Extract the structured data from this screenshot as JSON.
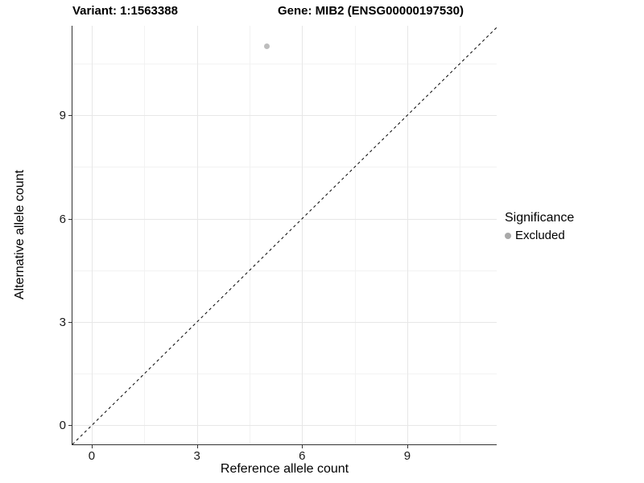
{
  "chart_data": {
    "type": "scatter",
    "title_left": "Variant: 1:1563388",
    "title_right": "Gene: MIB2 (ENSG00000197530)",
    "xlabel": "Reference allele count",
    "ylabel": "Alternative allele count",
    "xlim": [
      -0.55,
      11.55
    ],
    "ylim": [
      -0.55,
      11.6
    ],
    "x_major_ticks": [
      0,
      3,
      6,
      9
    ],
    "y_major_ticks": [
      0,
      3,
      6,
      9
    ],
    "x_minor_ticks": [
      1.5,
      4.5,
      7.5,
      10.5
    ],
    "y_minor_ticks": [
      1.5,
      4.5,
      7.5,
      10.5
    ],
    "grid": "major+minor",
    "identity_line": {
      "equation": "y = x",
      "style": "dashed",
      "color": "#000000"
    },
    "series": [
      {
        "name": "Excluded",
        "marker": "circle",
        "color": "#bdbdbd",
        "points": [
          {
            "x": 5,
            "y": 11
          }
        ]
      }
    ],
    "legend": {
      "title": "Significance",
      "position": "right",
      "items": [
        {
          "label": "Excluded",
          "color": "#a9a9a9"
        }
      ]
    }
  },
  "colors": {
    "background": "#ffffff",
    "axis_line": "#333333",
    "grid_major": "#e7e7e7",
    "grid_minor": "#f2f2f2",
    "dashed_line": "#000000",
    "point": "#bdbdbd",
    "text": "#000000"
  }
}
